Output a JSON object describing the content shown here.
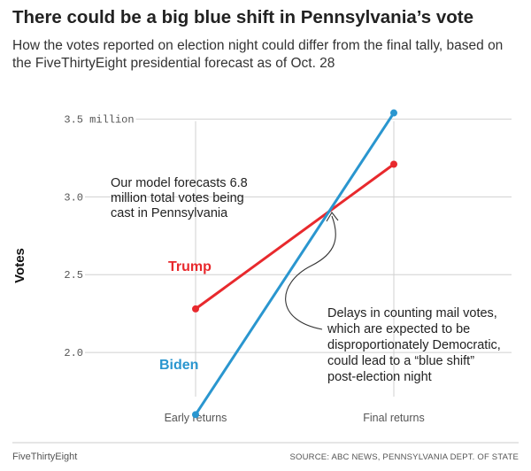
{
  "title": "There could be a big blue shift in Pennsylvania’s vote",
  "subtitle": "How the votes reported on election night could differ from the final tally, based on the FiveThirtyEight presidential forecast as of Oct. 28",
  "chart_data": {
    "type": "line",
    "title": "There could be a big blue shift in Pennsylvania’s vote",
    "subtitle": "How the votes reported on election night could differ from the final tally, based on the FiveThirtyEight presidential forecast as of Oct. 28",
    "xlabel": "",
    "ylabel": "Votes",
    "categories": [
      "Early returns",
      "Final returns"
    ],
    "ylim": [
      1.75,
      3.6
    ],
    "yticks": [
      {
        "value": 2.0,
        "label": "2.0"
      },
      {
        "value": 2.5,
        "label": "2.5"
      },
      {
        "value": 3.0,
        "label": "3.0"
      },
      {
        "value": 3.5,
        "label": "3.5 million"
      }
    ],
    "grid": true,
    "series": [
      {
        "name": "Trump",
        "color": "#e8292d",
        "values": [
          2.28,
          3.21
        ]
      },
      {
        "name": "Biden",
        "color": "#2a96cf",
        "values": [
          1.6,
          3.54
        ]
      }
    ],
    "annotations": {
      "model": [
        "Our model forecasts 6.8",
        "million total votes being",
        "cast in Pennsylvania"
      ],
      "delay": [
        "Delays in counting mail votes,",
        "which are expected to be",
        "disproportionately Democratic,",
        "could lead to a “blue shift”",
        "post-election night"
      ]
    }
  },
  "footer": {
    "brand": "FiveThirtyEight",
    "source": "SOURCE: ABC NEWS, PENNSYLVANIA DEPT. OF STATE"
  }
}
